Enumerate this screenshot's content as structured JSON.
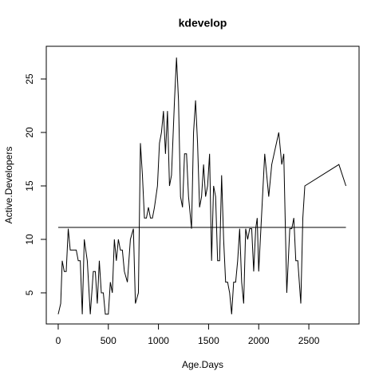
{
  "chart_data": {
    "type": "line",
    "title": "kdevelop",
    "x_label": "Age.Days",
    "y_label": "Active.Developers",
    "color": "#000000",
    "hline": 11.12,
    "xlim": [
      -119,
      3001
    ],
    "ylim": [
      2.09,
      28.06
    ],
    "xticks": [
      0,
      500,
      1000,
      1500,
      2000,
      2500
    ],
    "yticks": [
      5,
      10,
      15,
      20,
      25
    ],
    "x": [
      0,
      25,
      40,
      60,
      80,
      100,
      120,
      150,
      180,
      200,
      220,
      240,
      260,
      290,
      320,
      350,
      370,
      390,
      410,
      430,
      450,
      470,
      500,
      520,
      540,
      560,
      580,
      600,
      620,
      640,
      660,
      690,
      720,
      750,
      770,
      800,
      820,
      840,
      860,
      880,
      900,
      920,
      940,
      960,
      990,
      1010,
      1030,
      1050,
      1070,
      1090,
      1110,
      1130,
      1160,
      1180,
      1200,
      1220,
      1240,
      1260,
      1280,
      1300,
      1330,
      1350,
      1370,
      1390,
      1410,
      1430,
      1450,
      1470,
      1490,
      1510,
      1530,
      1550,
      1570,
      1590,
      1610,
      1630,
      1650,
      1670,
      1690,
      1710,
      1730,
      1750,
      1770,
      1790,
      1810,
      1830,
      1850,
      1870,
      1890,
      1910,
      1930,
      1950,
      1970,
      1985,
      2000,
      2060,
      2100,
      2130,
      2200,
      2230,
      2250,
      2280,
      2310,
      2330,
      2350,
      2370,
      2390,
      2420,
      2440,
      2460,
      2800,
      2870
    ],
    "values": [
      3,
      4,
      8,
      7,
      7,
      11,
      9,
      9,
      9,
      8,
      8,
      3,
      10,
      8,
      3,
      7,
      7,
      4,
      8,
      5,
      5,
      3,
      3,
      6,
      5,
      10,
      8,
      10,
      9,
      9,
      7,
      6,
      10,
      11,
      4,
      5,
      19,
      16,
      12,
      12,
      13,
      12,
      12,
      13,
      15,
      19,
      20,
      22,
      18,
      22,
      15,
      16,
      23,
      27,
      23,
      14,
      13,
      18,
      18,
      14,
      11,
      20,
      23,
      19,
      13,
      14,
      17,
      14,
      15,
      18,
      8,
      15,
      14,
      8,
      8,
      16,
      10,
      6,
      6,
      5,
      3,
      6,
      6,
      8,
      11,
      6,
      4,
      11,
      10,
      11,
      11,
      7,
      11,
      12,
      7,
      18,
      14,
      17,
      20,
      17,
      18,
      5,
      11,
      11,
      12,
      8,
      8,
      4,
      12,
      15,
      17,
      15
    ]
  }
}
